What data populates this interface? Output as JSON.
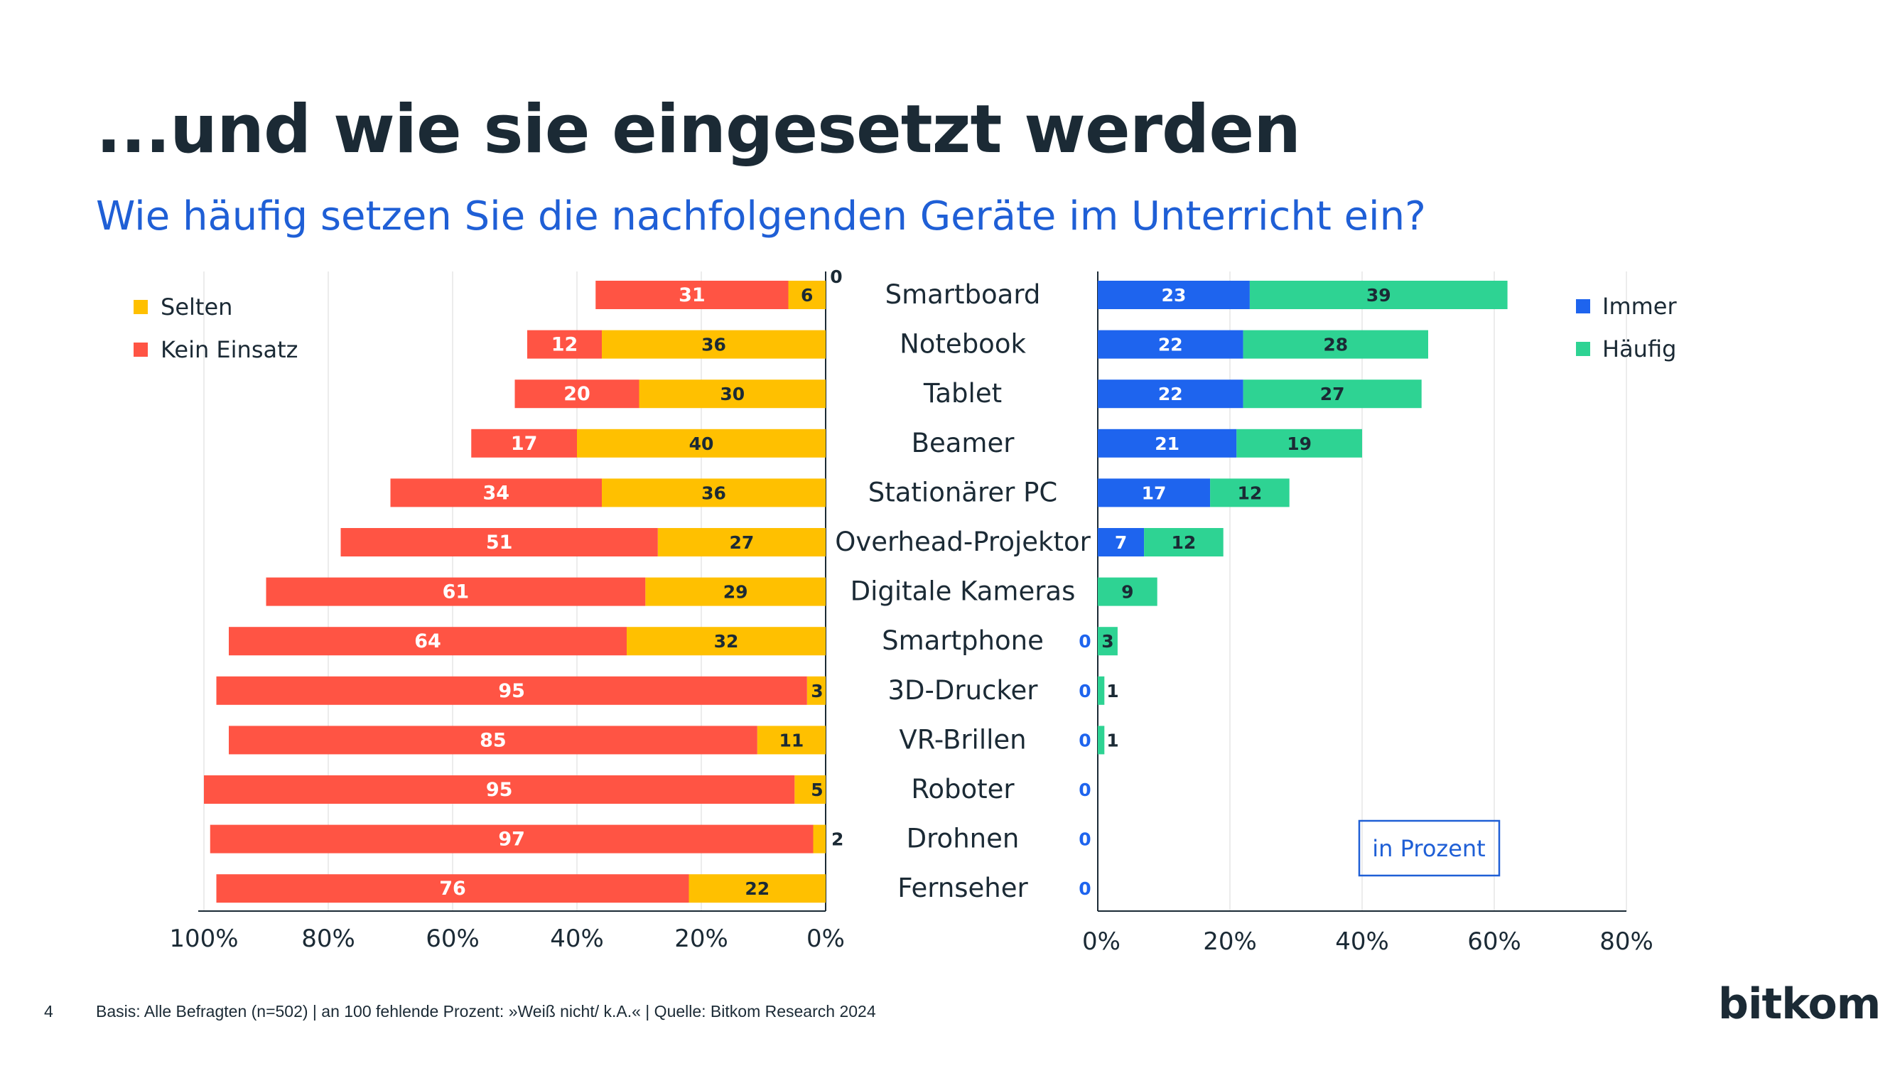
{
  "slide": {
    "title": "...und wie sie eingesetzt werden",
    "subtitle": "Wie häufig setzen Sie die nachfolgenden Geräte im Unterricht ein?",
    "page_number": "4",
    "footer": "Basis: Alle Befragten (n=502) | an 100 fehlende Prozent: »Weiß nicht/ k.A.« | Quelle: Bitkom Research 2024",
    "logo": "bitkom",
    "unit_note": "in Prozent"
  },
  "colors": {
    "selten": "#ffc000",
    "kein_einsatz": "#ff5444",
    "immer": "#1e64ee",
    "haeufig": "#2ed393",
    "zero_label": "#1e64ee",
    "axis": "#1b2a35",
    "grid": "#e6e6e6"
  },
  "chart_data": {
    "type": "bar",
    "orientation": "horizontal",
    "stacked": true,
    "categories": [
      "Smartboard",
      "Notebook",
      "Tablet",
      "Beamer",
      "Stationärer PC",
      "Overhead-Projektor",
      "Digitale Kameras",
      "Smartphone",
      "3D-Drucker",
      "VR-Brillen",
      "Roboter",
      "Drohnen",
      "Fernseher"
    ],
    "left": {
      "xlim": [
        100,
        0
      ],
      "ticks": [
        "100%",
        "80%",
        "60%",
        "40%",
        "20%",
        "0%"
      ],
      "legend": [
        "Selten",
        "Kein Einsatz"
      ],
      "series": [
        {
          "name": "Selten",
          "values": [
            6,
            36,
            30,
            40,
            36,
            27,
            29,
            32,
            3,
            11,
            5,
            2,
            22
          ]
        },
        {
          "name": "Kein Einsatz",
          "values": [
            31,
            12,
            20,
            17,
            34,
            51,
            61,
            64,
            95,
            85,
            95,
            97,
            76
          ]
        }
      ],
      "extra_labels": [
        {
          "category": "Smartboard",
          "text": "0"
        }
      ]
    },
    "right": {
      "xlim": [
        0,
        80
      ],
      "ticks": [
        "0%",
        "20%",
        "40%",
        "60%",
        "80%"
      ],
      "legend": [
        "Immer",
        "Häufig"
      ],
      "series": [
        {
          "name": "Immer",
          "values": [
            23,
            22,
            22,
            21,
            17,
            7,
            0,
            0,
            0,
            0,
            0,
            0,
            0
          ]
        },
        {
          "name": "Häufig",
          "values": [
            39,
            28,
            27,
            19,
            12,
            12,
            9,
            3,
            1,
            1,
            0,
            0,
            0
          ]
        }
      ],
      "zero_labels": [
        "Smartphone",
        "3D-Drucker",
        "VR-Brillen",
        "Roboter",
        "Drohnen",
        "Fernseher"
      ]
    }
  }
}
